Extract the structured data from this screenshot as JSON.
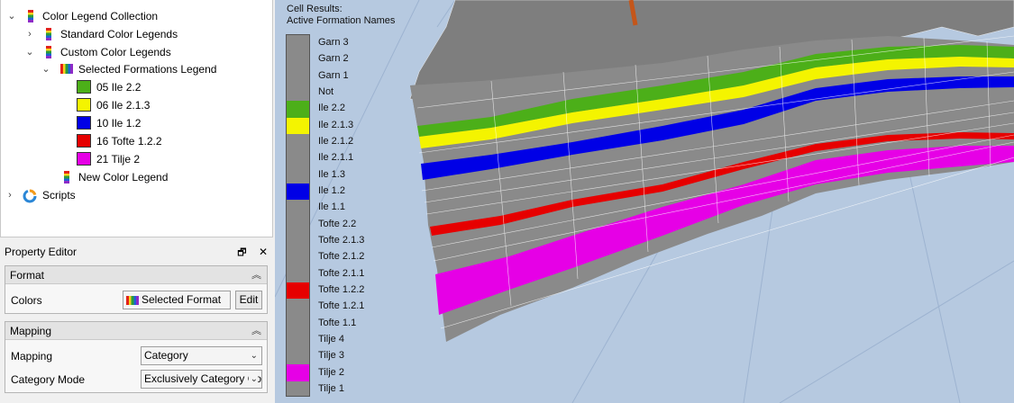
{
  "tree": {
    "items": [
      {
        "label": "Color Legend Collection",
        "arrow": "⌄",
        "icon": "legend-collection-icon"
      },
      {
        "label": "Standard Color Legends",
        "arrow": "›",
        "icon": "legend-folder-icon"
      },
      {
        "label": "Custom Color Legends",
        "arrow": "⌄",
        "icon": "legend-folder-icon"
      },
      {
        "label": "Selected Formations Legend",
        "arrow": "⌄",
        "icon": "color-legend-icon"
      },
      {
        "label": "05 Ile 2.2",
        "color": "#4caf19"
      },
      {
        "label": "06 Ile 2.1.3",
        "color": "#f4f400"
      },
      {
        "label": "10 Ile 1.2",
        "color": "#0000e6"
      },
      {
        "label": "16 Tofte 1.2.2",
        "color": "#e60000"
      },
      {
        "label": "21 Tilje 2",
        "color": "#e600e6"
      },
      {
        "label": "New Color Legend",
        "icon": "color-legend-icon"
      },
      {
        "label": "Scripts",
        "arrow": "›",
        "icon": "scripts-icon"
      }
    ]
  },
  "property_editor": {
    "title": "Property Editor",
    "float_glyph": "🗗",
    "close_glyph": "✕",
    "format": {
      "header": "Format",
      "colors_label": "Colors",
      "colors_value": "Selected Format",
      "edit_label": "Edit"
    },
    "mapping": {
      "header": "Mapping",
      "mapping_label": "Mapping",
      "mapping_value": "Category",
      "category_mode_label": "Category Mode",
      "category_mode_value": "Exclusively Category Co"
    }
  },
  "viewer": {
    "legend_title_line1": "Cell Results:",
    "legend_title_line2": "Active Formation Names",
    "legend": [
      {
        "label": "Garn 3"
      },
      {
        "label": "Garn 2"
      },
      {
        "label": "Garn 1"
      },
      {
        "label": "Not"
      },
      {
        "label": "Ile 2.2",
        "color": "#4caf19"
      },
      {
        "label": "Ile 2.1.3",
        "color": "#f4f400"
      },
      {
        "label": "Ile 2.1.2"
      },
      {
        "label": "Ile 2.1.1"
      },
      {
        "label": "Ile 1.3"
      },
      {
        "label": "Ile 1.2",
        "color": "#0000e6"
      },
      {
        "label": "Ile 1.1"
      },
      {
        "label": "Tofte 2.2"
      },
      {
        "label": "Tofte 2.1.3"
      },
      {
        "label": "Tofte 2.1.2"
      },
      {
        "label": "Tofte 2.1.1"
      },
      {
        "label": "Tofte 1.2.2",
        "color": "#e60000"
      },
      {
        "label": "Tofte 1.2.1"
      },
      {
        "label": "Tofte 1.1"
      },
      {
        "label": "Tilje 4"
      },
      {
        "label": "Tilje 3"
      },
      {
        "label": "Tilje 2",
        "color": "#e600e6"
      },
      {
        "label": "Tilje 1"
      }
    ],
    "default_color": "#8a8a8a"
  }
}
